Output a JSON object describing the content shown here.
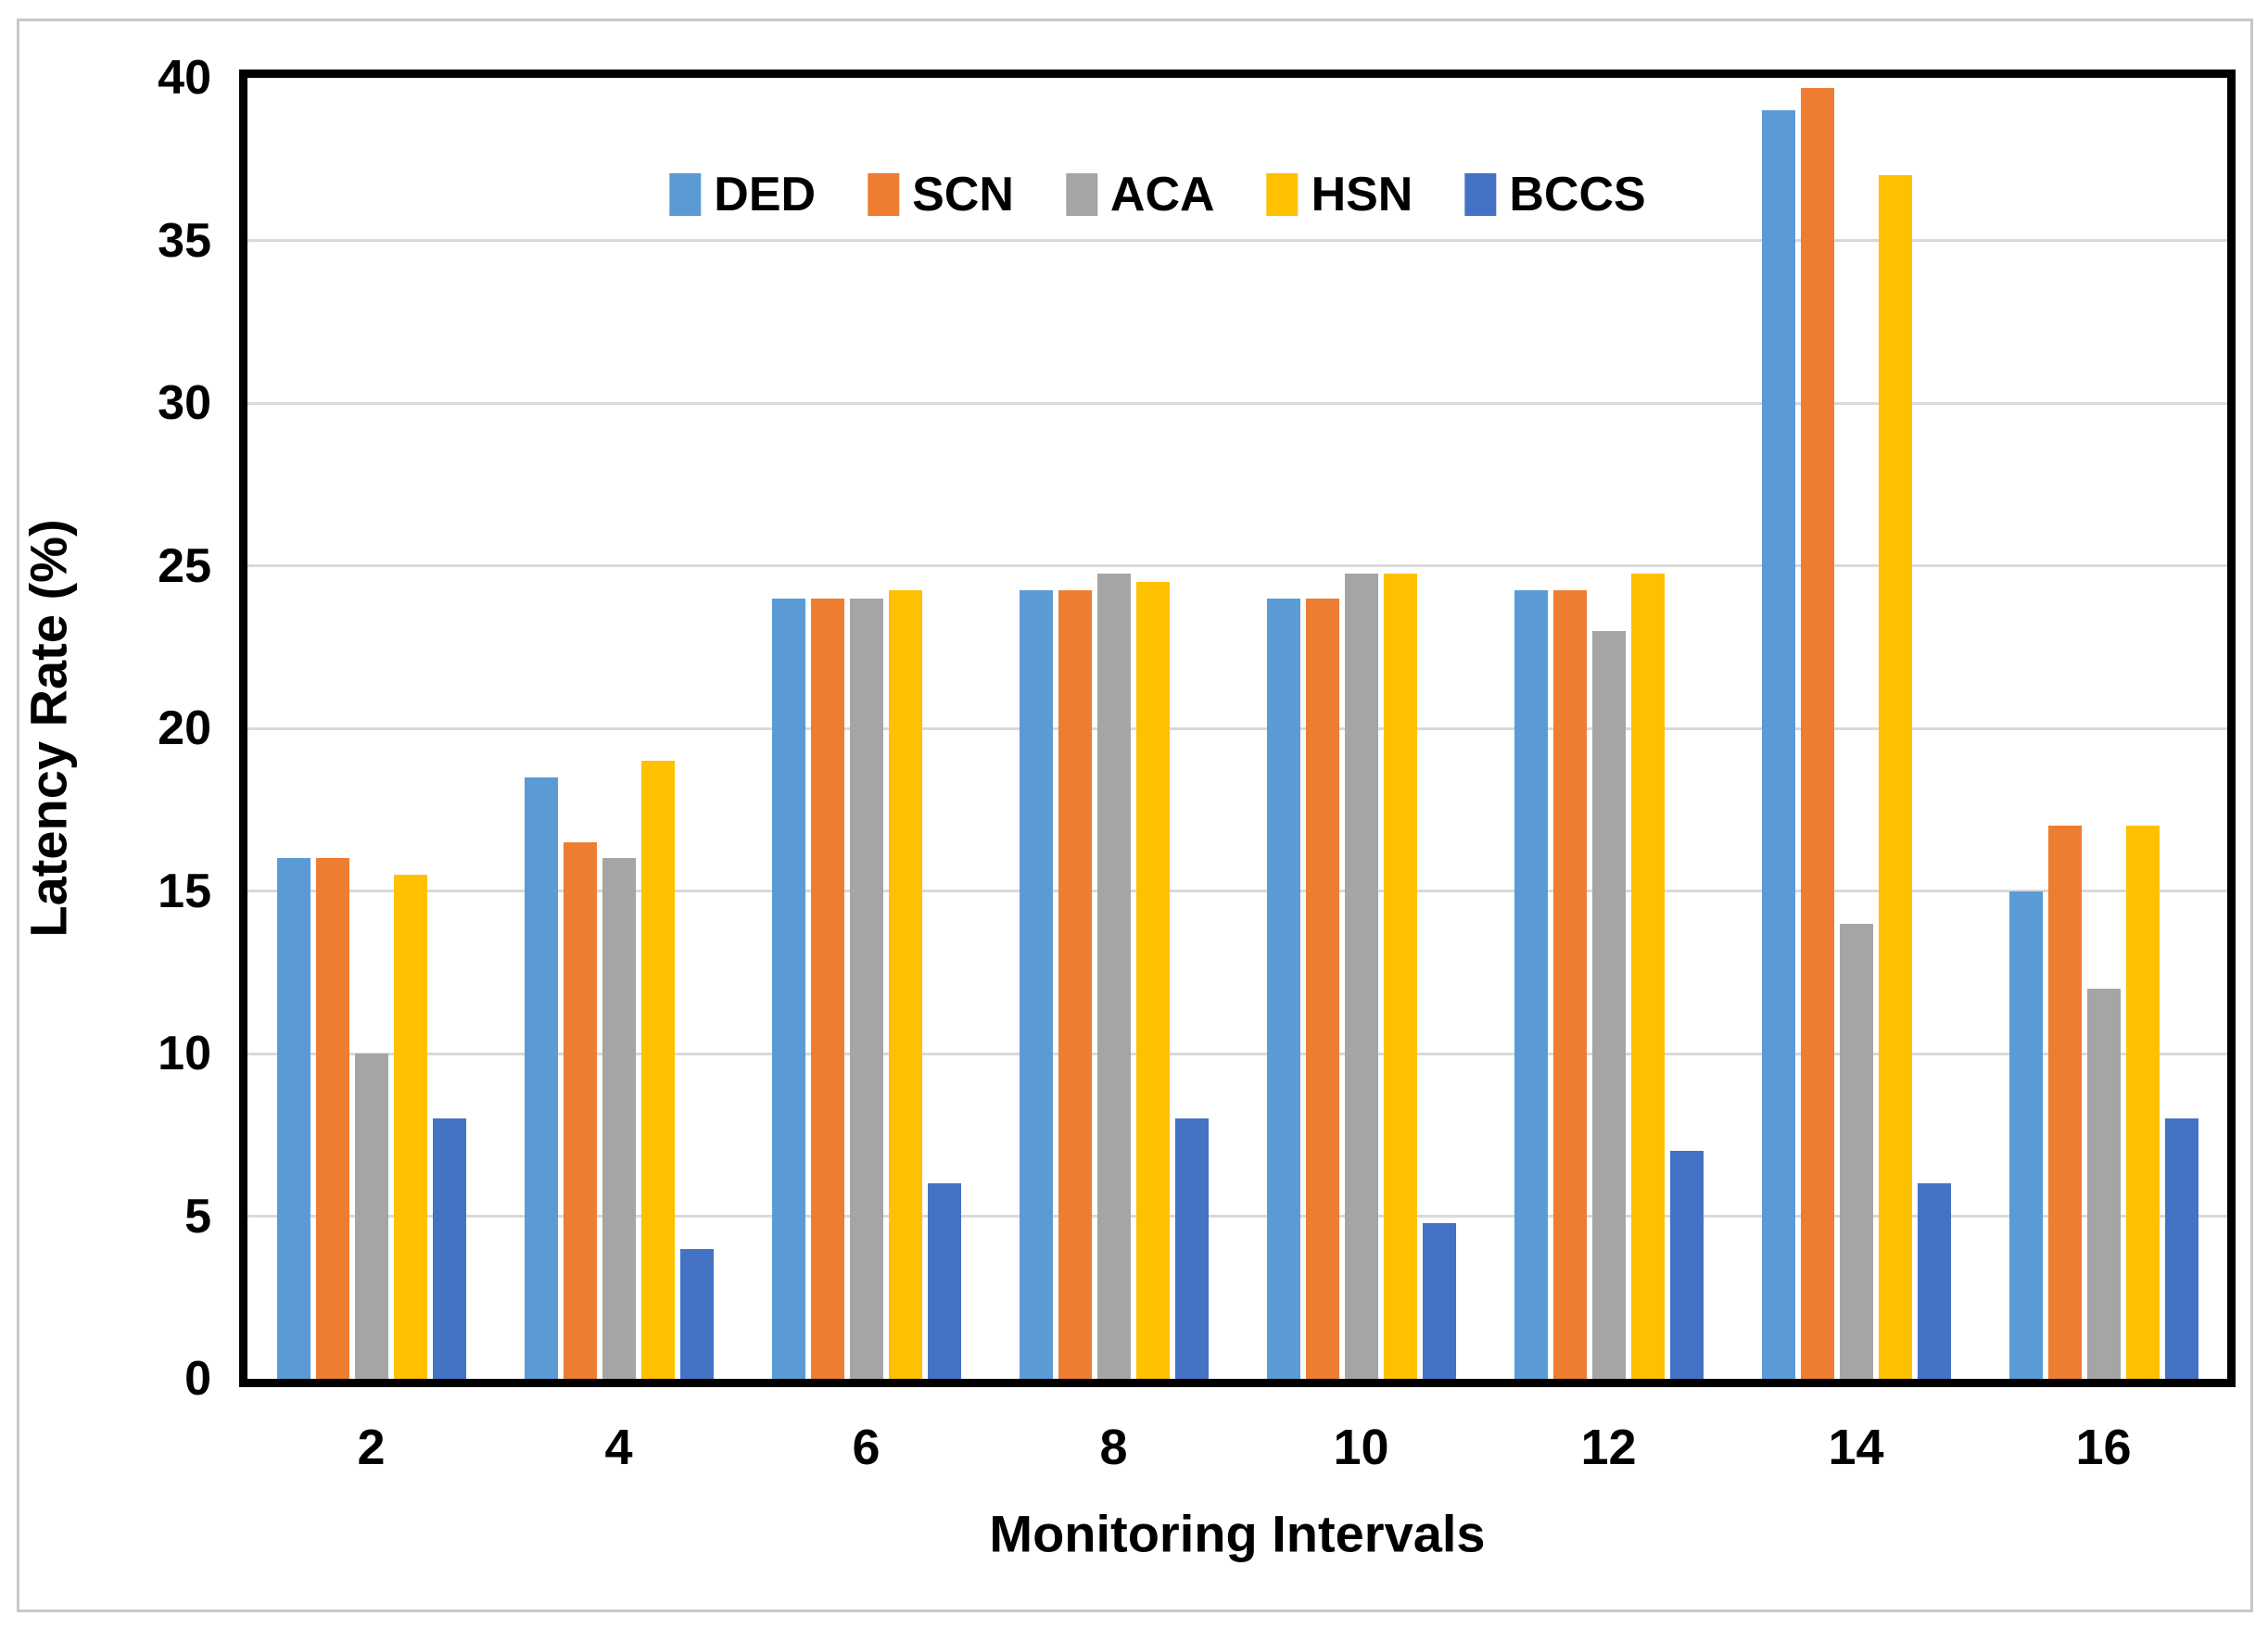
{
  "chart_data": {
    "type": "bar",
    "title": "",
    "xlabel": "Monitoring Intervals",
    "ylabel": "Latency Rate (%)",
    "categories": [
      "2",
      "4",
      "6",
      "8",
      "10",
      "12",
      "14",
      "16"
    ],
    "y_ticks": [
      0,
      5,
      10,
      15,
      20,
      25,
      30,
      35,
      40
    ],
    "ylim": [
      0,
      40
    ],
    "grid": "horizontal",
    "legend_position": "top-center-inside-plot",
    "gridline_color": "#d9d9d9",
    "axis_color": "#000000",
    "series": [
      {
        "name": "DED",
        "color": "#5B9BD5",
        "values": [
          16,
          18.5,
          24,
          24.25,
          24,
          24.25,
          39,
          15
        ]
      },
      {
        "name": "SCN",
        "color": "#ED7D31",
        "values": [
          16,
          16.5,
          24,
          24.25,
          24,
          24.25,
          39.7,
          17
        ]
      },
      {
        "name": "ACA",
        "color": "#A5A5A5",
        "values": [
          10,
          16,
          24,
          24.75,
          24.75,
          23,
          14,
          12
        ]
      },
      {
        "name": "HSN",
        "color": "#FFC000",
        "values": [
          15.5,
          19,
          24.25,
          24.5,
          24.75,
          24.75,
          37,
          17
        ]
      },
      {
        "name": "BCCS",
        "color": "#4472C4",
        "values": [
          8,
          4,
          6,
          8,
          4.8,
          7,
          6,
          8
        ]
      }
    ]
  }
}
